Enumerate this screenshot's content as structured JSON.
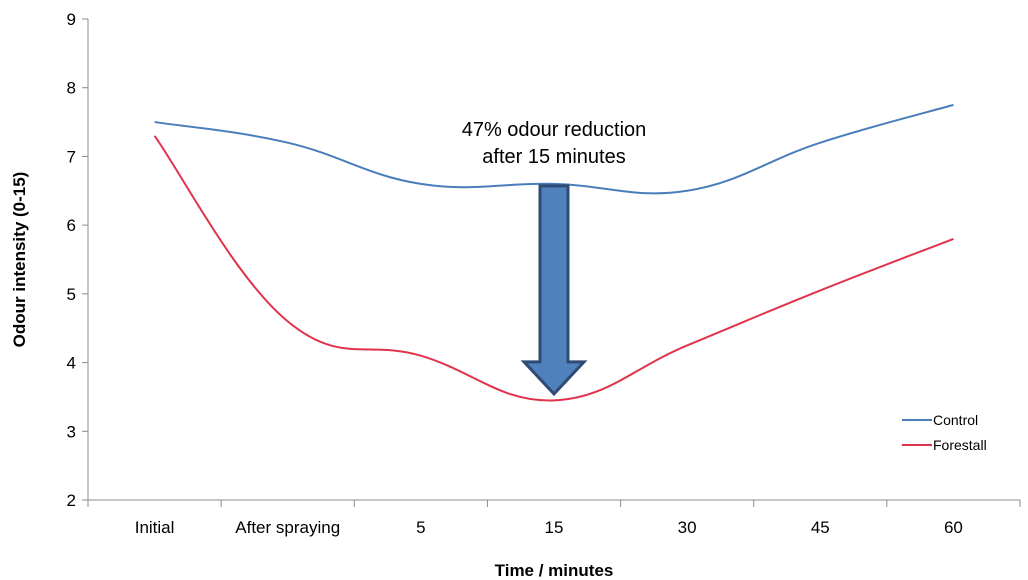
{
  "chart_data": {
    "type": "line",
    "title": "",
    "xlabel": "Time / minutes",
    "ylabel": "Odour intensity (0-15)",
    "ylim": [
      2,
      9
    ],
    "yticks": [
      "2",
      "3",
      "4",
      "5",
      "6",
      "7",
      "8",
      "9"
    ],
    "categories": [
      "Initial",
      "After spraying",
      "5",
      "15",
      "30",
      "45",
      "60"
    ],
    "series": [
      {
        "name": "Control",
        "color": "#4A7EBB",
        "values": [
          7.5,
          7.2,
          6.6,
          6.6,
          6.5,
          7.2,
          7.75
        ]
      },
      {
        "name": "Forestall",
        "color": "#E0334C",
        "values": [
          7.3,
          4.6,
          4.1,
          3.45,
          4.25,
          5.05,
          5.8
        ]
      }
    ],
    "legend_position": "bottom-right",
    "grid": false,
    "annotation": {
      "line1": "47% odour reduction",
      "line2": "after 15 minutes",
      "arrow_from": 6.6,
      "arrow_to": 3.5,
      "arrow_at": "15",
      "arrow_color": "#4F81BD"
    }
  }
}
